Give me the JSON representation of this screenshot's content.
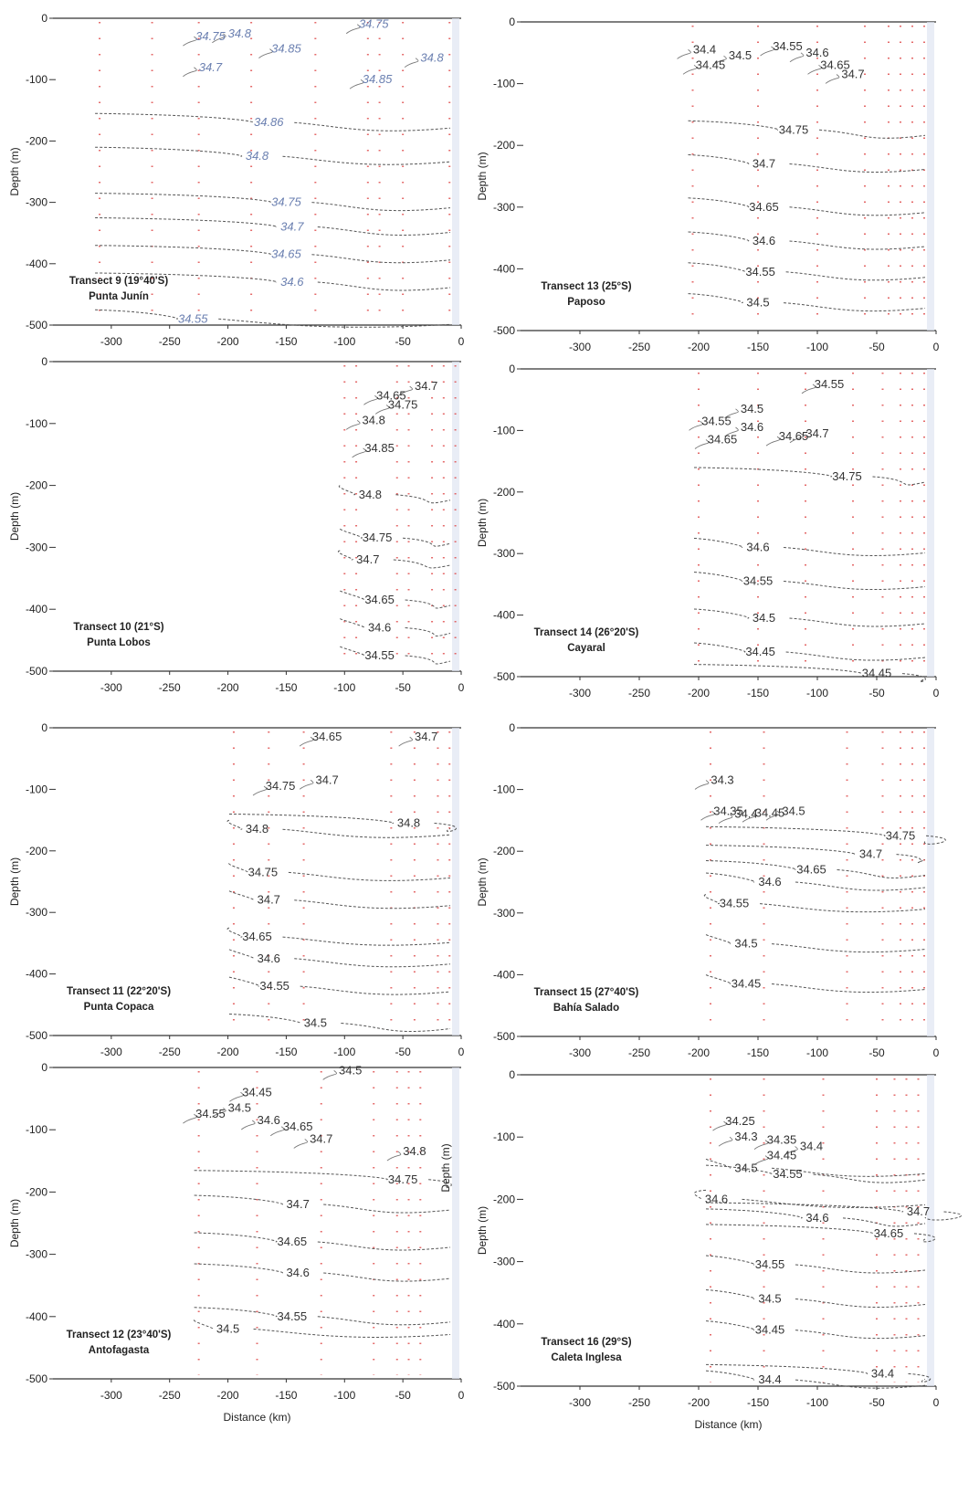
{
  "chart_data": [
    {
      "type": "contour",
      "title": "Transect 9 (19°40'S)",
      "subtitle": "Punta Junín",
      "xlabel": "",
      "ylabel": "Depth (m)",
      "xlim": [
        -350,
        0
      ],
      "ylim": [
        -500,
        0
      ],
      "xticks": [
        "-300",
        "-250",
        "-200",
        "-150",
        "-100",
        "-50",
        "0"
      ],
      "yticks": [
        "0",
        "-100",
        "-200",
        "-300",
        "-400",
        "-500"
      ],
      "stations_km": [
        -310,
        -265,
        -225,
        -180,
        -125,
        -80,
        -70,
        -50,
        -10
      ],
      "contour_labels": [
        {
          "text": "34.75",
          "x": -215,
          "y": -30,
          "blue": true
        },
        {
          "text": "34.8",
          "x": -190,
          "y": -25,
          "blue": true
        },
        {
          "text": "34.7",
          "x": -215,
          "y": -80,
          "blue": true
        },
        {
          "text": "34.85",
          "x": -150,
          "y": -50,
          "blue": true
        },
        {
          "text": "34.75",
          "x": -75,
          "y": -10,
          "blue": true
        },
        {
          "text": "34.8",
          "x": -25,
          "y": -65,
          "blue": true
        },
        {
          "text": "34.85",
          "x": -72,
          "y": -100,
          "blue": true
        },
        {
          "text": "34.86",
          "x": -165,
          "y": -170,
          "blue": true
        },
        {
          "text": "34.8",
          "x": -175,
          "y": -225,
          "blue": true
        },
        {
          "text": "34.75",
          "x": -150,
          "y": -300,
          "blue": true
        },
        {
          "text": "34.7",
          "x": -145,
          "y": -340,
          "blue": true
        },
        {
          "text": "34.65",
          "x": -150,
          "y": -385,
          "blue": true
        },
        {
          "text": "34.6",
          "x": -145,
          "y": -430,
          "blue": true
        },
        {
          "text": "34.55",
          "x": -230,
          "y": -490,
          "blue": true
        }
      ]
    },
    {
      "type": "contour",
      "title": "Transect 13 (25°S)",
      "subtitle": "Paposo",
      "xlabel": "",
      "ylabel": "Depth (m)",
      "xlim": [
        -350,
        0
      ],
      "ylim": [
        -500,
        0
      ],
      "xticks": [
        "-300",
        "-250",
        "-200",
        "-150",
        "-100",
        "-50",
        "0"
      ],
      "yticks": [
        "0",
        "-100",
        "-200",
        "-300",
        "-400",
        "-500"
      ],
      "stations_km": [
        -205,
        -150,
        -100,
        -60,
        -40,
        -30,
        -20,
        -10
      ],
      "contour_labels": [
        {
          "text": "34.4",
          "x": -195,
          "y": -45
        },
        {
          "text": "34.45",
          "x": -190,
          "y": -70
        },
        {
          "text": "34.5",
          "x": -165,
          "y": -55
        },
        {
          "text": "34.55",
          "x": -125,
          "y": -40
        },
        {
          "text": "34.6",
          "x": -100,
          "y": -50
        },
        {
          "text": "34.65",
          "x": -85,
          "y": -70
        },
        {
          "text": "34.7",
          "x": -70,
          "y": -85
        },
        {
          "text": "34.75",
          "x": -120,
          "y": -175
        },
        {
          "text": "34.7",
          "x": -145,
          "y": -230
        },
        {
          "text": "34.65",
          "x": -145,
          "y": -300
        },
        {
          "text": "34.6",
          "x": -145,
          "y": -355
        },
        {
          "text": "34.55",
          "x": -148,
          "y": -405
        },
        {
          "text": "34.5",
          "x": -150,
          "y": -455
        }
      ]
    },
    {
      "type": "contour",
      "title": "Transect 10 (21°S)",
      "subtitle": "Punta Lobos",
      "xlabel": "",
      "ylabel": "Depth (m)",
      "xlim": [
        -350,
        0
      ],
      "ylim": [
        -500,
        0
      ],
      "xticks": [
        "-300",
        "-250",
        "-200",
        "-150",
        "-100",
        "-50",
        "0"
      ],
      "yticks": [
        "0",
        "-100",
        "-200",
        "-300",
        "-400",
        "-500"
      ],
      "stations_km": [
        -100,
        -90,
        -55,
        -45,
        -25,
        -15,
        -5
      ],
      "contour_labels": [
        {
          "text": "34.65",
          "x": -60,
          "y": -55
        },
        {
          "text": "34.7",
          "x": -30,
          "y": -40
        },
        {
          "text": "34.75",
          "x": -50,
          "y": -70
        },
        {
          "text": "34.8",
          "x": -75,
          "y": -95
        },
        {
          "text": "34.85",
          "x": -70,
          "y": -140
        },
        {
          "text": "34.8",
          "x": -78,
          "y": -215
        },
        {
          "text": "34.75",
          "x": -72,
          "y": -285
        },
        {
          "text": "34.7",
          "x": -80,
          "y": -320
        },
        {
          "text": "34.65",
          "x": -70,
          "y": -385
        },
        {
          "text": "34.6",
          "x": -70,
          "y": -430
        },
        {
          "text": "34.55",
          "x": -70,
          "y": -475
        }
      ]
    },
    {
      "type": "contour",
      "title": "Transect 14 (26°20'S)",
      "subtitle": "Cayaral",
      "xlabel": "",
      "ylabel": "Depth (m)",
      "xlim": [
        -350,
        0
      ],
      "ylim": [
        -500,
        0
      ],
      "xticks": [
        "-300",
        "-250",
        "-200",
        "-150",
        "-100",
        "-50",
        "0"
      ],
      "yticks": [
        "0",
        "-100",
        "-200",
        "-300",
        "-400",
        "-500"
      ],
      "stations_km": [
        -200,
        -150,
        -110,
        -70,
        -45,
        -30,
        -20,
        -10
      ],
      "contour_labels": [
        {
          "text": "34.55",
          "x": -90,
          "y": -25
        },
        {
          "text": "34.5",
          "x": -155,
          "y": -65
        },
        {
          "text": "34.55",
          "x": -185,
          "y": -85
        },
        {
          "text": "34.6",
          "x": -155,
          "y": -95
        },
        {
          "text": "34.65",
          "x": -180,
          "y": -115
        },
        {
          "text": "34.65",
          "x": -120,
          "y": -110
        },
        {
          "text": "34.7",
          "x": -100,
          "y": -105
        },
        {
          "text": "34.75",
          "x": -75,
          "y": -175
        },
        {
          "text": "34.6",
          "x": -150,
          "y": -290
        },
        {
          "text": "34.55",
          "x": -150,
          "y": -345
        },
        {
          "text": "34.5",
          "x": -145,
          "y": -405
        },
        {
          "text": "34.45",
          "x": -148,
          "y": -460
        },
        {
          "text": "34.45",
          "x": -50,
          "y": -495
        }
      ]
    },
    {
      "type": "contour",
      "title": "Transect 11 (22°20'S)",
      "subtitle": "Punta Copaca",
      "xlabel": "",
      "ylabel": "Depth (m)",
      "xlim": [
        -350,
        0
      ],
      "ylim": [
        -500,
        0
      ],
      "xticks": [
        "-300",
        "-250",
        "-200",
        "-150",
        "-100",
        "-50",
        "0"
      ],
      "yticks": [
        "0",
        "-100",
        "-200",
        "-300",
        "-400",
        "-500"
      ],
      "stations_km": [
        -195,
        -165,
        -135,
        -60,
        -40,
        -20,
        -10
      ],
      "contour_labels": [
        {
          "text": "34.65",
          "x": -115,
          "y": -15
        },
        {
          "text": "34.7",
          "x": -30,
          "y": -15
        },
        {
          "text": "34.75",
          "x": -155,
          "y": -95
        },
        {
          "text": "34.7",
          "x": -115,
          "y": -85
        },
        {
          "text": "34.8",
          "x": -175,
          "y": -165
        },
        {
          "text": "34.8",
          "x": -45,
          "y": -155
        },
        {
          "text": "34.75",
          "x": -170,
          "y": -235
        },
        {
          "text": "34.7",
          "x": -165,
          "y": -280
        },
        {
          "text": "34.65",
          "x": -175,
          "y": -340
        },
        {
          "text": "34.6",
          "x": -165,
          "y": -375
        },
        {
          "text": "34.55",
          "x": -160,
          "y": -420
        },
        {
          "text": "34.5",
          "x": -125,
          "y": -480
        }
      ]
    },
    {
      "type": "contour",
      "title": "Transect 15 (27°40'S)",
      "subtitle": "Bahía Salado",
      "xlabel": "",
      "ylabel": "Depth (m)",
      "xlim": [
        -350,
        0
      ],
      "ylim": [
        -500,
        0
      ],
      "xticks": [
        "-300",
        "-250",
        "-200",
        "-150",
        "-100",
        "-50",
        "0"
      ],
      "yticks": [
        "0",
        "-100",
        "-200",
        "-300",
        "-400",
        "-500"
      ],
      "stations_km": [
        -190,
        -145,
        -75,
        -45,
        -30,
        -20,
        -10
      ],
      "contour_labels": [
        {
          "text": "34.3",
          "x": -180,
          "y": -85
        },
        {
          "text": "34.35",
          "x": -175,
          "y": -135
        },
        {
          "text": "34.4",
          "x": -160,
          "y": -140
        },
        {
          "text": "34.45",
          "x": -140,
          "y": -138
        },
        {
          "text": "34.5",
          "x": -120,
          "y": -135
        },
        {
          "text": "34.75",
          "x": -30,
          "y": -175
        },
        {
          "text": "34.7",
          "x": -55,
          "y": -205
        },
        {
          "text": "34.65",
          "x": -105,
          "y": -230
        },
        {
          "text": "34.6",
          "x": -140,
          "y": -250
        },
        {
          "text": "34.55",
          "x": -170,
          "y": -285
        },
        {
          "text": "34.5",
          "x": -160,
          "y": -350
        },
        {
          "text": "34.45",
          "x": -160,
          "y": -415
        }
      ]
    },
    {
      "type": "contour",
      "title": "Transect 12 (23°40'S)",
      "subtitle": "Antofagasta",
      "xlabel": "Distance (km)",
      "ylabel": "Depth (m)",
      "xlim": [
        -350,
        0
      ],
      "ylim": [
        -500,
        0
      ],
      "xticks": [
        "-300",
        "-250",
        "-200",
        "-150",
        "-100",
        "-50",
        "0"
      ],
      "yticks": [
        "0",
        "-100",
        "-200",
        "-300",
        "-400",
        "-500"
      ],
      "stations_km": [
        -225,
        -175,
        -120,
        -75,
        -55,
        -45,
        -35
      ],
      "contour_labels": [
        {
          "text": "34.5",
          "x": -95,
          "y": -5
        },
        {
          "text": "34.45",
          "x": -175,
          "y": -40
        },
        {
          "text": "34.55",
          "x": -215,
          "y": -75
        },
        {
          "text": "34.5",
          "x": -190,
          "y": -65
        },
        {
          "text": "34.6",
          "x": -165,
          "y": -85
        },
        {
          "text": "34.65",
          "x": -140,
          "y": -95
        },
        {
          "text": "34.7",
          "x": -120,
          "y": -115
        },
        {
          "text": "34.8",
          "x": -40,
          "y": -135
        },
        {
          "text": "34.75",
          "x": -50,
          "y": -180
        },
        {
          "text": "34.7",
          "x": -140,
          "y": -220
        },
        {
          "text": "34.65",
          "x": -145,
          "y": -280
        },
        {
          "text": "34.6",
          "x": -140,
          "y": -330
        },
        {
          "text": "34.55",
          "x": -145,
          "y": -400
        },
        {
          "text": "34.5",
          "x": -200,
          "y": -420
        }
      ],
      "inner_ylabel": "Depth (m)"
    },
    {
      "type": "contour",
      "title": "Transect 16 (29°S)",
      "subtitle": "Caleta Inglesa",
      "xlabel": "Distance (km)",
      "ylabel": "Depth (m)",
      "xlim": [
        -350,
        0
      ],
      "ylim": [
        -500,
        0
      ],
      "xticks": [
        "-300",
        "-250",
        "-200",
        "-150",
        "-100",
        "-50",
        "0"
      ],
      "yticks": [
        "0",
        "-100",
        "-200",
        "-300",
        "-400",
        "-500"
      ],
      "stations_km": [
        -190,
        -145,
        -95,
        -50,
        -35,
        -25,
        -15
      ],
      "contour_labels": [
        {
          "text": "34.25",
          "x": -165,
          "y": -75
        },
        {
          "text": "34.3",
          "x": -160,
          "y": -100
        },
        {
          "text": "34.35",
          "x": -130,
          "y": -105
        },
        {
          "text": "34.4",
          "x": -105,
          "y": -115
        },
        {
          "text": "34.45",
          "x": -130,
          "y": -130
        },
        {
          "text": "34.5",
          "x": -160,
          "y": -150
        },
        {
          "text": "34.55",
          "x": -125,
          "y": -160
        },
        {
          "text": "34.6",
          "x": -185,
          "y": -200
        },
        {
          "text": "34.6",
          "x": -100,
          "y": -230
        },
        {
          "text": "34.7",
          "x": -15,
          "y": -220
        },
        {
          "text": "34.65",
          "x": -40,
          "y": -255
        },
        {
          "text": "34.55",
          "x": -140,
          "y": -305
        },
        {
          "text": "34.5",
          "x": -140,
          "y": -360
        },
        {
          "text": "34.45",
          "x": -140,
          "y": -410
        },
        {
          "text": "34.4",
          "x": -140,
          "y": -490
        },
        {
          "text": "34.4",
          "x": -45,
          "y": -480
        }
      ]
    }
  ]
}
